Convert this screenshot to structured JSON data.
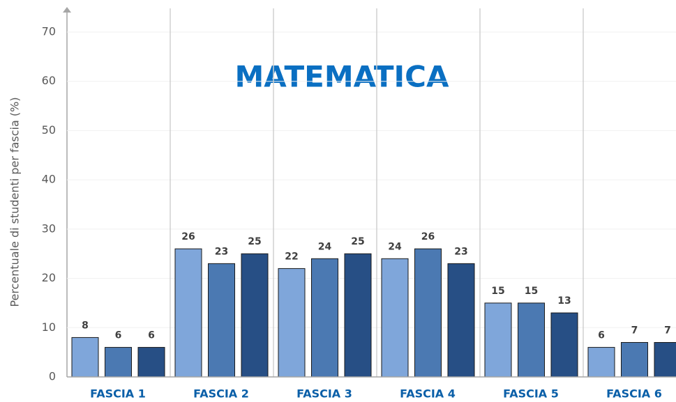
{
  "chart_data": {
    "type": "bar",
    "title": "MATEMATICA",
    "y_label": "Percentuale di studenti per fascia (%)",
    "categories": [
      "FASCIA 1",
      "FASCIA 2",
      "FASCIA 3",
      "FASCIA 4",
      "FASCIA 5",
      "FASCIA 6"
    ],
    "series": [
      {
        "color": "#7fa6da",
        "values": [
          8,
          26,
          22,
          24,
          15,
          6
        ]
      },
      {
        "color": "#4b79b2",
        "values": [
          6,
          23,
          24,
          26,
          15,
          7
        ]
      },
      {
        "color": "#274f85",
        "values": [
          6,
          25,
          25,
          23,
          13,
          7
        ]
      }
    ],
    "ylim": [
      0,
      70
    ],
    "yticks": [
      0,
      10,
      20,
      30,
      40,
      50,
      60,
      70
    ],
    "grid": true
  }
}
